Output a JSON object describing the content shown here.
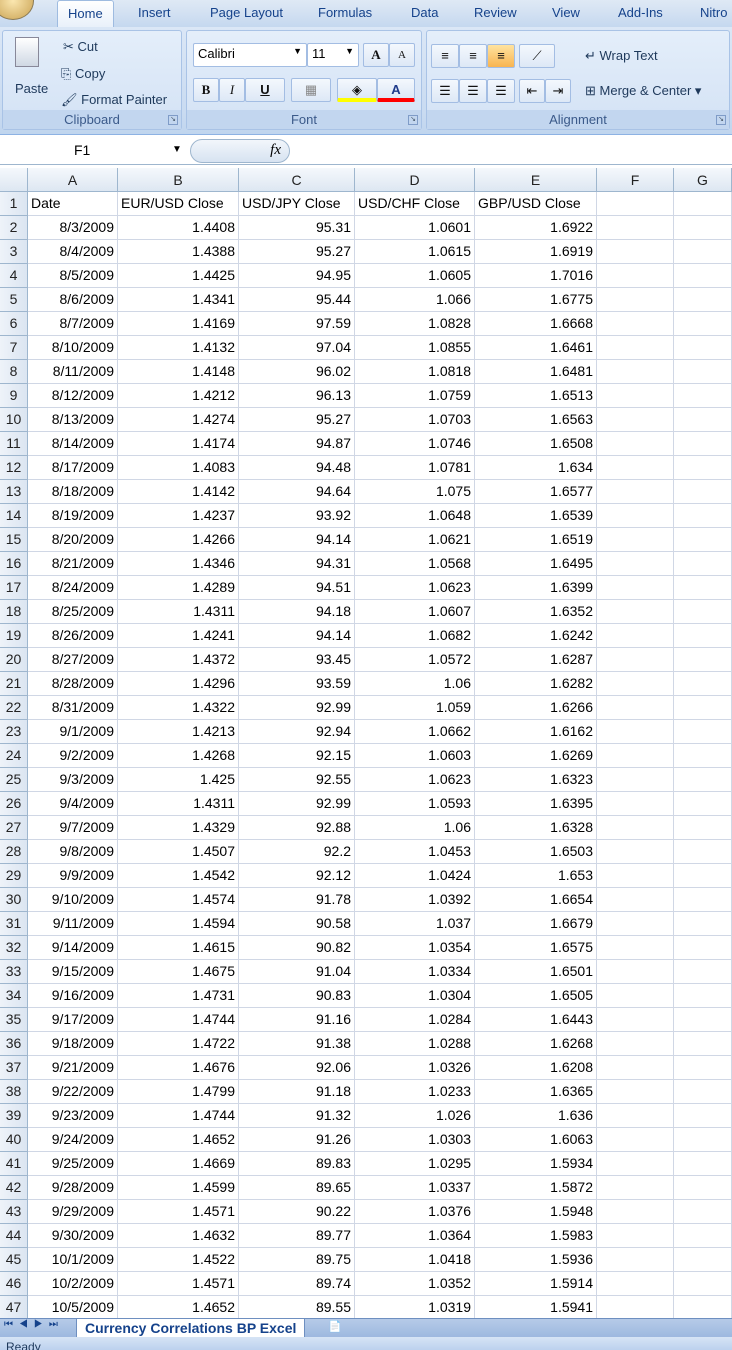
{
  "ribbon_tabs": [
    "Home",
    "Insert",
    "Page Layout",
    "Formulas",
    "Data",
    "Review",
    "View",
    "Add-Ins",
    "Nitro"
  ],
  "clipboard": {
    "paste": "Paste",
    "cut": "Cut",
    "copy": "Copy",
    "format_painter": "Format Painter",
    "label": "Clipboard"
  },
  "font": {
    "name": "Calibri",
    "size": "11",
    "bold": "B",
    "italic": "I",
    "underline": "U",
    "label": "Font",
    "fill_color": "#ffff00",
    "font_color": "#ff0000"
  },
  "alignment": {
    "wrap_text": "Wrap Text",
    "merge_center": "Merge & Center",
    "label": "Alignment"
  },
  "formula_bar": {
    "name_box": "F1",
    "fx": "fx",
    "value": ""
  },
  "columns": [
    "A",
    "B",
    "C",
    "D",
    "E",
    "F",
    "G"
  ],
  "headers": [
    "Date",
    "EUR/USD Close",
    "USD/JPY Close",
    "USD/CHF Close",
    "GBP/USD Close"
  ],
  "rows": [
    [
      "8/3/2009",
      "1.4408",
      "95.31",
      "1.0601",
      "1.6922"
    ],
    [
      "8/4/2009",
      "1.4388",
      "95.27",
      "1.0615",
      "1.6919"
    ],
    [
      "8/5/2009",
      "1.4425",
      "94.95",
      "1.0605",
      "1.7016"
    ],
    [
      "8/6/2009",
      "1.4341",
      "95.44",
      "1.066",
      "1.6775"
    ],
    [
      "8/7/2009",
      "1.4169",
      "97.59",
      "1.0828",
      "1.6668"
    ],
    [
      "8/10/2009",
      "1.4132",
      "97.04",
      "1.0855",
      "1.6461"
    ],
    [
      "8/11/2009",
      "1.4148",
      "96.02",
      "1.0818",
      "1.6481"
    ],
    [
      "8/12/2009",
      "1.4212",
      "96.13",
      "1.0759",
      "1.6513"
    ],
    [
      "8/13/2009",
      "1.4274",
      "95.27",
      "1.0703",
      "1.6563"
    ],
    [
      "8/14/2009",
      "1.4174",
      "94.87",
      "1.0746",
      "1.6508"
    ],
    [
      "8/17/2009",
      "1.4083",
      "94.48",
      "1.0781",
      "1.634"
    ],
    [
      "8/18/2009",
      "1.4142",
      "94.64",
      "1.075",
      "1.6577"
    ],
    [
      "8/19/2009",
      "1.4237",
      "93.92",
      "1.0648",
      "1.6539"
    ],
    [
      "8/20/2009",
      "1.4266",
      "94.14",
      "1.0621",
      "1.6519"
    ],
    [
      "8/21/2009",
      "1.4346",
      "94.31",
      "1.0568",
      "1.6495"
    ],
    [
      "8/24/2009",
      "1.4289",
      "94.51",
      "1.0623",
      "1.6399"
    ],
    [
      "8/25/2009",
      "1.4311",
      "94.18",
      "1.0607",
      "1.6352"
    ],
    [
      "8/26/2009",
      "1.4241",
      "94.14",
      "1.0682",
      "1.6242"
    ],
    [
      "8/27/2009",
      "1.4372",
      "93.45",
      "1.0572",
      "1.6287"
    ],
    [
      "8/28/2009",
      "1.4296",
      "93.59",
      "1.06",
      "1.6282"
    ],
    [
      "8/31/2009",
      "1.4322",
      "92.99",
      "1.059",
      "1.6266"
    ],
    [
      "9/1/2009",
      "1.4213",
      "92.94",
      "1.0662",
      "1.6162"
    ],
    [
      "9/2/2009",
      "1.4268",
      "92.15",
      "1.0603",
      "1.6269"
    ],
    [
      "9/3/2009",
      "1.425",
      "92.55",
      "1.0623",
      "1.6323"
    ],
    [
      "9/4/2009",
      "1.4311",
      "92.99",
      "1.0593",
      "1.6395"
    ],
    [
      "9/7/2009",
      "1.4329",
      "92.88",
      "1.06",
      "1.6328"
    ],
    [
      "9/8/2009",
      "1.4507",
      "92.2",
      "1.0453",
      "1.6503"
    ],
    [
      "9/9/2009",
      "1.4542",
      "92.12",
      "1.0424",
      "1.653"
    ],
    [
      "9/10/2009",
      "1.4574",
      "91.78",
      "1.0392",
      "1.6654"
    ],
    [
      "9/11/2009",
      "1.4594",
      "90.58",
      "1.037",
      "1.6679"
    ],
    [
      "9/14/2009",
      "1.4615",
      "90.82",
      "1.0354",
      "1.6575"
    ],
    [
      "9/15/2009",
      "1.4675",
      "91.04",
      "1.0334",
      "1.6501"
    ],
    [
      "9/16/2009",
      "1.4731",
      "90.83",
      "1.0304",
      "1.6505"
    ],
    [
      "9/17/2009",
      "1.4744",
      "91.16",
      "1.0284",
      "1.6443"
    ],
    [
      "9/18/2009",
      "1.4722",
      "91.38",
      "1.0288",
      "1.6268"
    ],
    [
      "9/21/2009",
      "1.4676",
      "92.06",
      "1.0326",
      "1.6208"
    ],
    [
      "9/22/2009",
      "1.4799",
      "91.18",
      "1.0233",
      "1.6365"
    ],
    [
      "9/23/2009",
      "1.4744",
      "91.32",
      "1.026",
      "1.636"
    ],
    [
      "9/24/2009",
      "1.4652",
      "91.26",
      "1.0303",
      "1.6063"
    ],
    [
      "9/25/2009",
      "1.4669",
      "89.83",
      "1.0295",
      "1.5934"
    ],
    [
      "9/28/2009",
      "1.4599",
      "89.65",
      "1.0337",
      "1.5872"
    ],
    [
      "9/29/2009",
      "1.4571",
      "90.22",
      "1.0376",
      "1.5948"
    ],
    [
      "9/30/2009",
      "1.4632",
      "89.77",
      "1.0364",
      "1.5983"
    ],
    [
      "10/1/2009",
      "1.4522",
      "89.75",
      "1.0418",
      "1.5936"
    ],
    [
      "10/2/2009",
      "1.4571",
      "89.74",
      "1.0352",
      "1.5914"
    ],
    [
      "10/5/2009",
      "1.4652",
      "89.55",
      "1.0319",
      "1.5941"
    ]
  ],
  "sheet_tab": "Currency Correlations BP Excel",
  "status": "Ready"
}
